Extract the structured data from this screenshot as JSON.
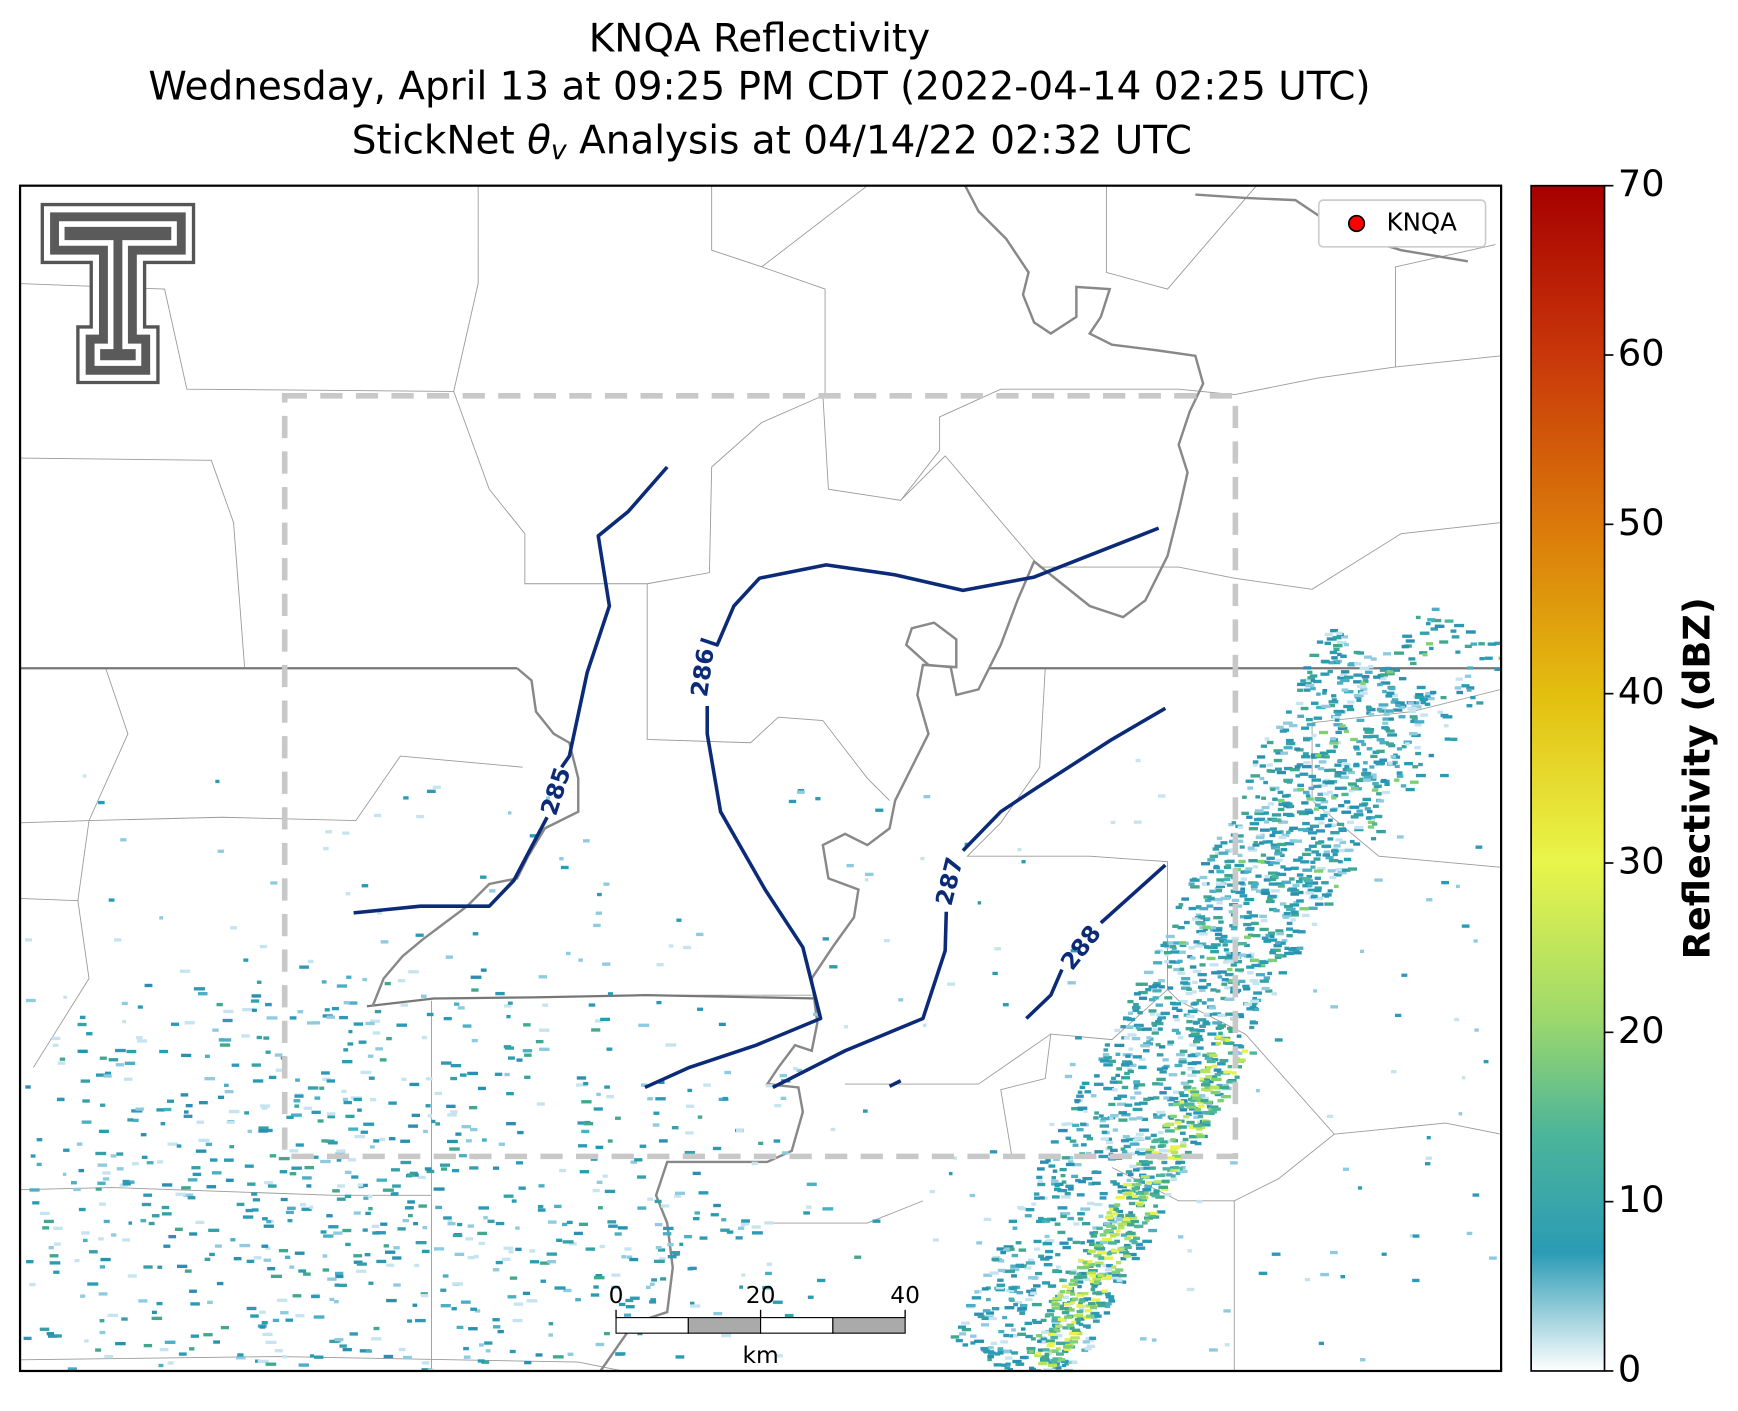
{
  "title": [
    "KNQA Reflectivity",
    "Wednesday, April 13 at 09:25 PM CDT (2022-04-14 02:25 UTC)"
  ],
  "analysis_title": {
    "before": "StickNet ",
    "symbol": "θ",
    "subscript": "v",
    "after": " Analysis at 04/14/22 02:32 UTC"
  },
  "legend": {
    "label": "KNQA",
    "color": "#ff0000"
  },
  "colorbar": {
    "label": "Reflectivity (dBZ)",
    "lim": [
      0,
      70
    ],
    "ticks": [
      0,
      10,
      20,
      30,
      40,
      50,
      60,
      70
    ]
  },
  "contour_labels": [
    285,
    286,
    287,
    288
  ],
  "scale_bar": {
    "lim": [
      0,
      40
    ],
    "ticks": [
      0,
      20,
      40
    ],
    "unit": "km"
  }
}
